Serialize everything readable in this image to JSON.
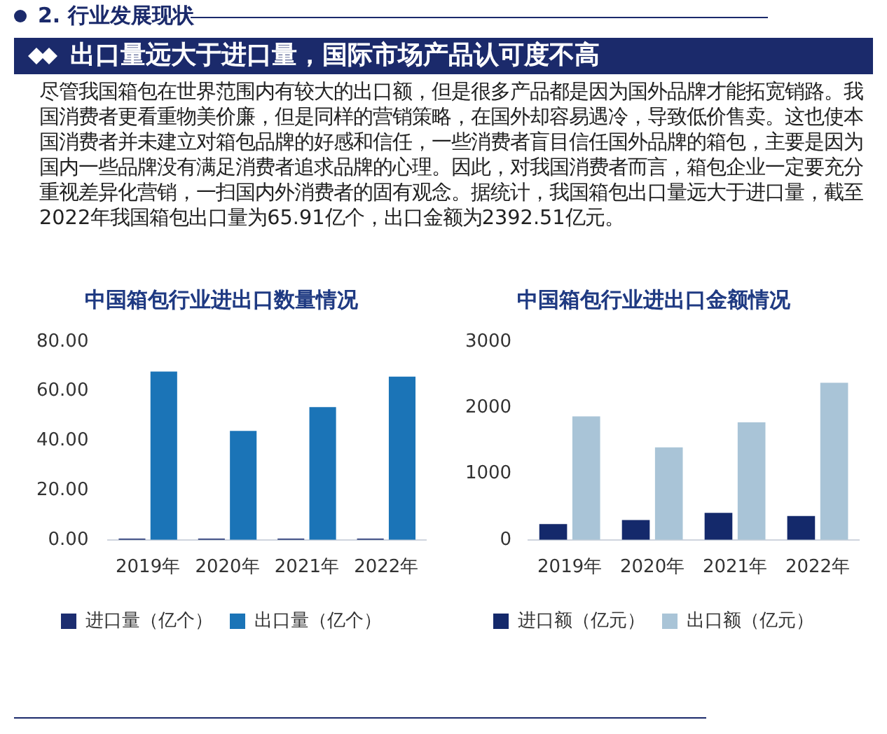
{
  "chart_data": [
    {
      "type": "other",
      "title": "出口量远大于进口量，国际市场产品认可度不高",
      "annotations": [
        "2. 行业发展现状",
        "尽管我国箱包在世界范围内有较大的出口额，但是很多产品都是因为国外品牌才能拓宽销路。我国消费者更看重物美价廉，但是同样的营销策略，在国外却容易遇冷，导致低价售卖。这也使本国消费者并未建立对箱包品牌的好感和信任，一些消费者盲目信任国外品牌的箱包，主要是因为国内一些品牌没有满足消费者追求品牌的心理。因此，对我国消费者而言，箱包企业一定要充分重视差异化营销，一扫国内外消费者的固有观念。据统计，我国箱包出口量远大于进口量，截至2022年我国箱包出口量为65.91亿个，出口金额为2392.51亿元。"
      ]
    },
    {
      "type": "bar",
      "title": "中国箱包行业进出口数量情况",
      "categories": [
        "2019年",
        "2020年",
        "2021年",
        "2022年"
      ],
      "series": [
        {
          "name": "进口量（亿个）",
          "color": "#1c2d70",
          "values": [
            0.5,
            0.5,
            0.5,
            0.5
          ]
        },
        {
          "name": "出口量（亿个）",
          "color": "#1b74b7",
          "values": [
            68,
            44,
            53.6,
            65.9
          ]
        }
      ],
      "ylim": [
        0,
        80
      ],
      "yticks": [
        {
          "value": 0,
          "label": "0.00"
        },
        {
          "value": 20,
          "label": "20.00"
        },
        {
          "value": 40,
          "label": "40.00"
        },
        {
          "value": 60,
          "label": "60.00"
        },
        {
          "value": 80,
          "label": "80.00"
        }
      ],
      "legend": "bottom"
    },
    {
      "type": "bar",
      "title": "中国箱包行业进出口金额情况",
      "categories": [
        "2019年",
        "2020年",
        "2021年",
        "2022年"
      ],
      "series": [
        {
          "name": "进口额（亿元）",
          "color": "#14296b",
          "values": [
            240,
            300,
            410,
            360
          ]
        },
        {
          "name": "出口额（亿元）",
          "color": "#a9c4d7",
          "values": [
            1870,
            1400,
            1780,
            2380
          ]
        }
      ],
      "ylim": [
        0,
        3000
      ],
      "yticks": [
        0,
        1000,
        2000,
        3000
      ],
      "legend": "bottom"
    }
  ]
}
